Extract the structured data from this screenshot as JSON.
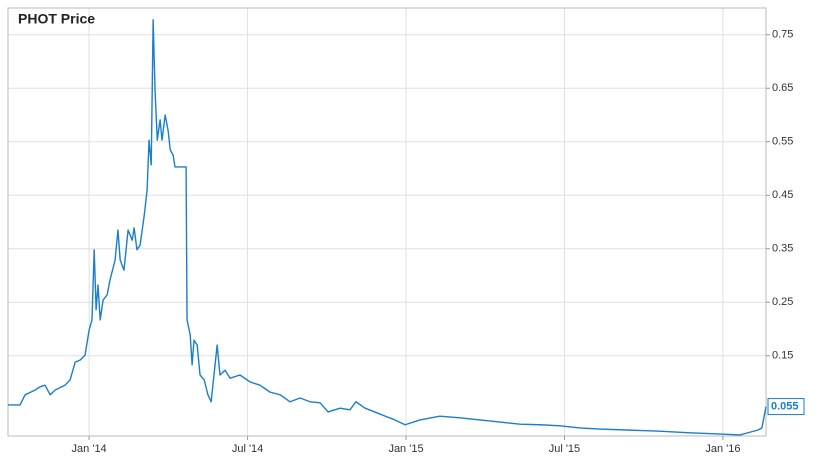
{
  "chart_data": {
    "type": "line",
    "title": "PHOT Price",
    "x": [
      2013.744,
      2013.782,
      2013.798,
      2013.83,
      2013.845,
      2013.861,
      2013.877,
      2013.893,
      2013.924,
      2013.94,
      2013.956,
      2013.972,
      2013.987,
      2014.0,
      2014.009,
      2014.016,
      2014.022,
      2014.028,
      2014.035,
      2014.044,
      2014.057,
      2014.066,
      2014.082,
      2014.091,
      2014.098,
      2014.11,
      2014.123,
      2014.136,
      2014.142,
      2014.151,
      2014.161,
      2014.174,
      2014.183,
      2014.189,
      2014.196,
      2014.202,
      2014.208,
      2014.215,
      2014.224,
      2014.23,
      2014.24,
      2014.249,
      2014.256,
      2014.265,
      2014.271,
      2014.306,
      2014.309,
      2014.319,
      2014.325,
      2014.331,
      2014.341,
      2014.35,
      2014.363,
      2014.375,
      2014.385,
      2014.394,
      2014.404,
      2014.413,
      2014.429,
      2014.445,
      2014.476,
      2014.508,
      2014.539,
      2014.571,
      2014.603,
      2014.634,
      2014.666,
      2014.697,
      2014.729,
      2014.754,
      2014.792,
      2014.823,
      2014.842,
      2014.871,
      2014.918,
      2014.965,
      2014.997,
      2015.044,
      2015.107,
      2015.17,
      2015.233,
      2015.297,
      2015.36,
      2015.423,
      2015.486,
      2015.549,
      2015.612,
      2015.707,
      2015.801,
      2015.896,
      2015.975,
      2016.054,
      2016.085,
      2016.11,
      2016.123,
      2016.136
    ],
    "values": [
      0.058,
      0.058,
      0.077,
      0.086,
      0.092,
      0.095,
      0.077,
      0.086,
      0.095,
      0.105,
      0.138,
      0.142,
      0.151,
      0.198,
      0.217,
      0.348,
      0.236,
      0.282,
      0.217,
      0.254,
      0.264,
      0.292,
      0.329,
      0.385,
      0.329,
      0.31,
      0.385,
      0.366,
      0.389,
      0.348,
      0.357,
      0.413,
      0.46,
      0.553,
      0.507,
      0.778,
      0.647,
      0.553,
      0.591,
      0.553,
      0.6,
      0.572,
      0.535,
      0.525,
      0.503,
      0.503,
      0.217,
      0.189,
      0.133,
      0.179,
      0.17,
      0.114,
      0.105,
      0.077,
      0.064,
      0.114,
      0.17,
      0.114,
      0.123,
      0.108,
      0.114,
      0.101,
      0.095,
      0.082,
      0.077,
      0.064,
      0.071,
      0.064,
      0.062,
      0.045,
      0.052,
      0.049,
      0.064,
      0.052,
      0.041,
      0.03,
      0.021,
      0.03,
      0.037,
      0.034,
      0.03,
      0.026,
      0.022,
      0.021,
      0.019,
      0.015,
      0.013,
      0.011,
      0.009,
      0.006,
      0.004,
      0.002,
      0.007,
      0.011,
      0.015,
      0.055
    ],
    "color": "#1a7fcb",
    "xlim": [
      2013.744,
      2016.136
    ],
    "xticks": [
      {
        "value": 2014,
        "label": "Jan '14"
      },
      {
        "value": 2014.5,
        "label": "Jul '14"
      },
      {
        "value": 2015,
        "label": "Jan '15"
      },
      {
        "value": 2015.5,
        "label": "Jul '15"
      },
      {
        "value": 2016,
        "label": "Jan '16"
      }
    ],
    "ylim": [
      0,
      0.8
    ],
    "yticks": [
      0.15,
      0.25,
      0.35,
      0.45,
      0.55,
      0.65,
      0.75
    ],
    "grid": true
  }
}
